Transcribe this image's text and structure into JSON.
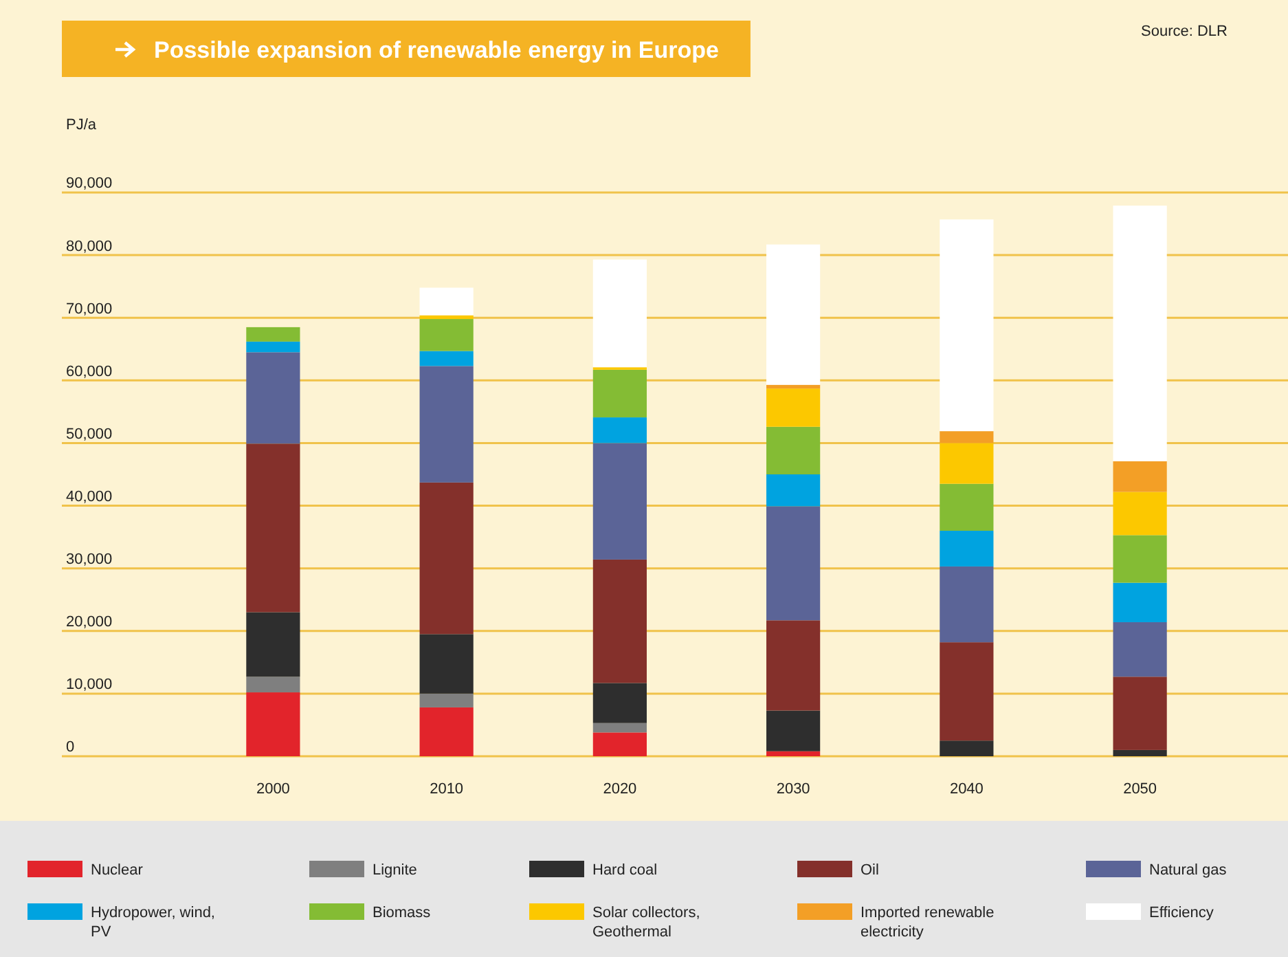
{
  "chart_data": {
    "type": "bar",
    "title": "Possible expansion of renewable energy in Europe",
    "ylabel": "PJ/a",
    "annotations": [
      "Source: DLR"
    ],
    "categories": [
      "2000",
      "2010",
      "2020",
      "2030",
      "2040",
      "2050"
    ],
    "stacked": true,
    "grid": "y",
    "legend": "bottom",
    "ylim": [
      0,
      90000
    ],
    "yticks": [
      0,
      {
        "value": 10000,
        "label": "10,000"
      },
      {
        "value": 20000,
        "label": "20,000"
      },
      {
        "value": 30000,
        "label": "30,000"
      },
      {
        "value": 40000,
        "label": "40,000"
      },
      {
        "value": 50000,
        "label": "50,000"
      },
      {
        "value": 60000,
        "label": "60,000"
      },
      {
        "value": 70000,
        "label": "70,000"
      },
      {
        "value": 80000,
        "label": "80,000"
      },
      {
        "value": 90000,
        "label": "90,000"
      }
    ],
    "series": [
      {
        "name": "Nuclear",
        "color": "#e2242b",
        "values": [
          10200,
          7800,
          3800,
          800,
          0,
          0
        ]
      },
      {
        "name": "Lignite",
        "color": "#7f7f7f",
        "values": [
          2500,
          2200,
          1500,
          0,
          0,
          0
        ]
      },
      {
        "name": "Hard coal",
        "color": "#2e2e2e",
        "values": [
          10300,
          9500,
          6400,
          6500,
          2500,
          1000
        ]
      },
      {
        "name": "Oil",
        "color": "#84302b",
        "values": [
          26900,
          24200,
          19700,
          14400,
          15700,
          11700
        ]
      },
      {
        "name": "Natural gas",
        "color": "#5b6497",
        "values": [
          14600,
          18600,
          18600,
          18200,
          12100,
          8700
        ]
      },
      {
        "name": "Hydropower, wind, PV",
        "color": "#00a3e0",
        "values": [
          1700,
          2400,
          4100,
          5100,
          5700,
          6300
        ]
      },
      {
        "name": "Biomass",
        "color": "#84bc34",
        "values": [
          2300,
          5100,
          7600,
          7600,
          7500,
          7600
        ]
      },
      {
        "name": "Solar collectors, Geothermal",
        "color": "#fcc800",
        "values": [
          0,
          600,
          400,
          6100,
          6500,
          6900
        ]
      },
      {
        "name": "Imported renewable electricity",
        "color": "#f39f26",
        "values": [
          0,
          0,
          0,
          600,
          1900,
          4900
        ]
      },
      {
        "name": "Efficiency",
        "color": "#ffffff",
        "values": [
          0,
          4400,
          17200,
          22400,
          33800,
          40800
        ]
      }
    ]
  }
}
